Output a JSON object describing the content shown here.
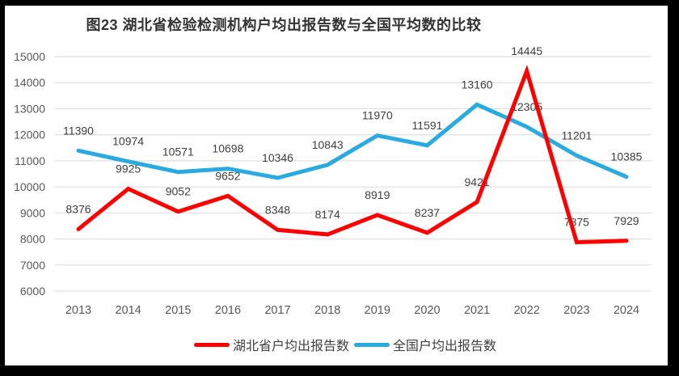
{
  "chart_data": {
    "type": "line",
    "title": "图23 湖北省检验检测机构户均出报告数与全国平均数的比较",
    "categories": [
      "2013",
      "2014",
      "2015",
      "2016",
      "2017",
      "2018",
      "2019",
      "2020",
      "2021",
      "2022",
      "2023",
      "2024"
    ],
    "series": [
      {
        "name": "湖北省户均出报告数",
        "color": "#FF0000",
        "values": [
          8376,
          9925,
          9052,
          9652,
          8348,
          8174,
          8919,
          8237,
          9421,
          14445,
          7875,
          7929
        ]
      },
      {
        "name": "全国户均出报告数",
        "color": "#29ABE2",
        "values": [
          11390,
          10974,
          10571,
          10698,
          10346,
          10843,
          11970,
          11591,
          13160,
          12305,
          11201,
          10385
        ]
      }
    ],
    "xlabel": "",
    "ylabel": "",
    "ylim": [
      6000,
      15000
    ],
    "ytick_step": 1000,
    "grid": "horizontal",
    "data_labels": true,
    "legend_position": "bottom",
    "colors": {
      "gridline": "#D9D9D9",
      "axis_label": "#595959",
      "data_label": "#404040",
      "title": "#333333",
      "frame": "#000000",
      "background": "#FFFFFF"
    }
  }
}
